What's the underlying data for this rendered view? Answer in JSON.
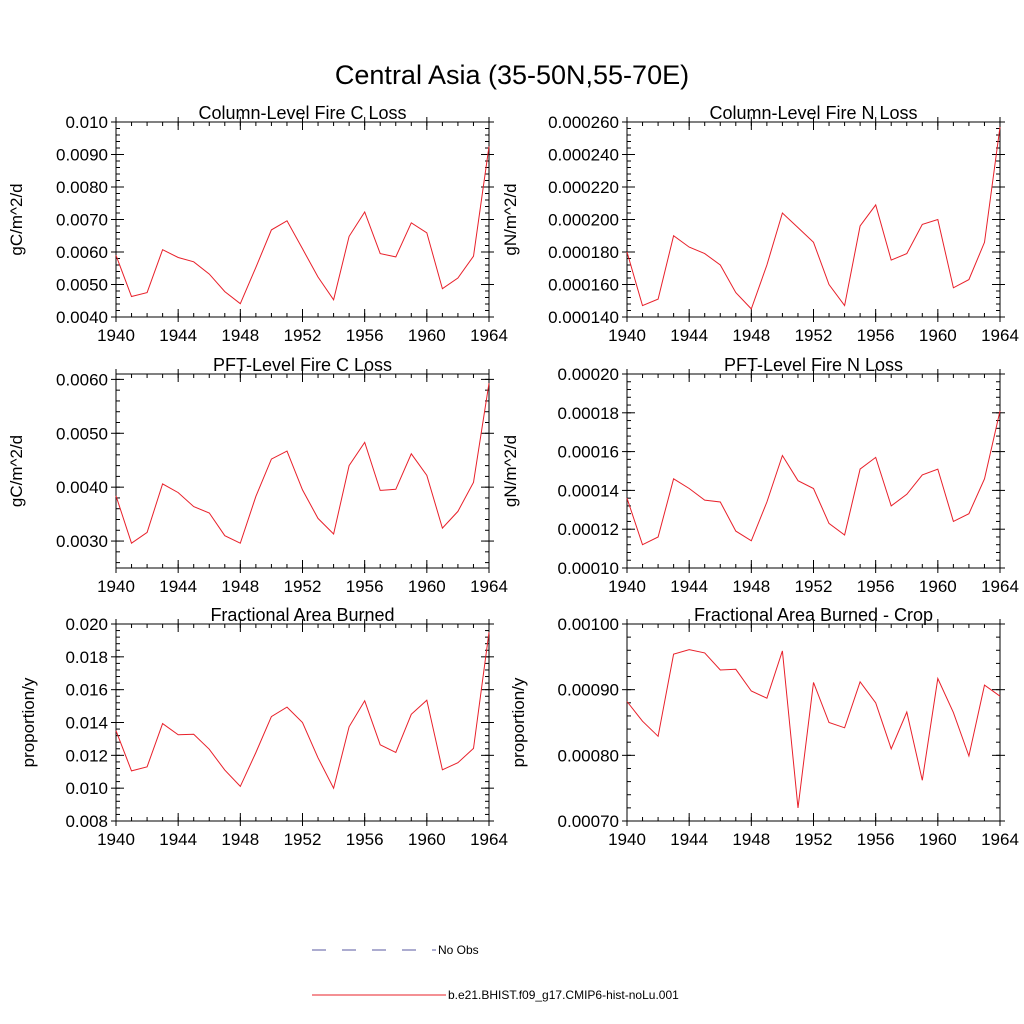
{
  "title": "Central Asia (35-50N,55-70E)",
  "legend": {
    "placement": "bottom-center",
    "entries": [
      {
        "label": "No Obs",
        "color": "#5a5aa0",
        "style": "dashed"
      },
      {
        "label": "b.e21.BHIST.f09_g17.CMIP6-hist-noLu.001",
        "color": "#e8202a",
        "style": "solid"
      }
    ]
  },
  "chart_data": [
    {
      "type": "line",
      "title": "Column-Level Fire C Loss",
      "ylabel": "gC/m^2/d",
      "xlim": [
        1940,
        1964
      ],
      "ylim": [
        0.004,
        0.01
      ],
      "xticks": [
        1940,
        1944,
        1948,
        1952,
        1956,
        1960,
        1964
      ],
      "yticks": [
        0.004,
        0.005,
        0.006,
        0.007,
        0.008,
        0.009,
        0.01
      ],
      "ytick_labels": [
        "0.0040",
        "0.0050",
        "0.0060",
        "0.0070",
        "0.0080",
        "0.0090",
        "0.010"
      ],
      "x": [
        1940,
        1941,
        1942,
        1943,
        1944,
        1945,
        1946,
        1947,
        1948,
        1949,
        1950,
        1951,
        1952,
        1953,
        1954,
        1955,
        1956,
        1957,
        1958,
        1959,
        1960,
        1961,
        1962,
        1963,
        1964
      ],
      "series": [
        {
          "name": "b.e21.BHIST.f09_g17.CMIP6-hist-noLu.001",
          "color": "#e8202a",
          "values": [
            0.0059,
            0.00463,
            0.00475,
            0.00607,
            0.00583,
            0.0057,
            0.00532,
            0.00478,
            0.00441,
            0.00553,
            0.00668,
            0.00696,
            0.0061,
            0.00523,
            0.00453,
            0.00648,
            0.00723,
            0.00595,
            0.00585,
            0.0069,
            0.00659,
            0.00487,
            0.0052,
            0.00587,
            0.00925
          ]
        }
      ]
    },
    {
      "type": "line",
      "title": "Column-Level Fire N Loss",
      "ylabel": "gN/m^2/d",
      "xlim": [
        1940,
        1964
      ],
      "ylim": [
        0.00014,
        0.00026
      ],
      "xticks": [
        1940,
        1944,
        1948,
        1952,
        1956,
        1960,
        1964
      ],
      "yticks": [
        0.00014,
        0.00016,
        0.00018,
        0.0002,
        0.00022,
        0.00024,
        0.00026
      ],
      "ytick_labels": [
        "0.000140",
        "0.000160",
        "0.000180",
        "0.000200",
        "0.000220",
        "0.000240",
        "0.000260"
      ],
      "x": [
        1940,
        1941,
        1942,
        1943,
        1944,
        1945,
        1946,
        1947,
        1948,
        1949,
        1950,
        1951,
        1952,
        1953,
        1954,
        1955,
        1956,
        1957,
        1958,
        1959,
        1960,
        1961,
        1962,
        1963,
        1964
      ],
      "series": [
        {
          "name": "b.e21.BHIST.f09_g17.CMIP6-hist-noLu.001",
          "color": "#e8202a",
          "values": [
            0.00018,
            0.000147,
            0.000151,
            0.00019,
            0.000183,
            0.000179,
            0.000172,
            0.000155,
            0.000145,
            0.000172,
            0.000204,
            0.000195,
            0.000186,
            0.00016,
            0.000147,
            0.000196,
            0.000209,
            0.000175,
            0.000179,
            0.000197,
            0.0002,
            0.000158,
            0.000163,
            0.000186,
            0.000257
          ]
        }
      ]
    },
    {
      "type": "line",
      "title": "PFT-Level Fire C Loss",
      "ylabel": "gC/m^2/d",
      "xlim": [
        1940,
        1964
      ],
      "ylim": [
        0.0025,
        0.0061
      ],
      "xticks": [
        1940,
        1944,
        1948,
        1952,
        1956,
        1960,
        1964
      ],
      "yticks": [
        0.003,
        0.004,
        0.005,
        0.006
      ],
      "ytick_labels": [
        "0.0030",
        "0.0040",
        "0.0050",
        "0.0060"
      ],
      "x": [
        1940,
        1941,
        1942,
        1943,
        1944,
        1945,
        1946,
        1947,
        1948,
        1949,
        1950,
        1951,
        1952,
        1953,
        1954,
        1955,
        1956,
        1957,
        1958,
        1959,
        1960,
        1961,
        1962,
        1963,
        1964
      ],
      "series": [
        {
          "name": "b.e21.BHIST.f09_g17.CMIP6-hist-noLu.001",
          "color": "#e8202a",
          "values": [
            0.00384,
            0.00296,
            0.00316,
            0.00406,
            0.0039,
            0.00364,
            0.00352,
            0.0031,
            0.00296,
            0.00383,
            0.00452,
            0.00467,
            0.00395,
            0.00342,
            0.00313,
            0.0044,
            0.00483,
            0.00394,
            0.00396,
            0.00462,
            0.00422,
            0.00324,
            0.00355,
            0.00409,
            0.00593
          ]
        }
      ]
    },
    {
      "type": "line",
      "title": "PFT-Level Fire N Loss",
      "ylabel": "gN/m^2/d",
      "xlim": [
        1940,
        1964
      ],
      "ylim": [
        0.0001,
        0.0002
      ],
      "xticks": [
        1940,
        1944,
        1948,
        1952,
        1956,
        1960,
        1964
      ],
      "yticks": [
        0.0001,
        0.00012,
        0.00014,
        0.00016,
        0.00018,
        0.0002
      ],
      "ytick_labels": [
        "0.00010",
        "0.00012",
        "0.00014",
        "0.00016",
        "0.00018",
        "0.00020"
      ],
      "x": [
        1940,
        1941,
        1942,
        1943,
        1944,
        1945,
        1946,
        1947,
        1948,
        1949,
        1950,
        1951,
        1952,
        1953,
        1954,
        1955,
        1956,
        1957,
        1958,
        1959,
        1960,
        1961,
        1962,
        1963,
        1964
      ],
      "series": [
        {
          "name": "b.e21.BHIST.f09_g17.CMIP6-hist-noLu.001",
          "color": "#e8202a",
          "values": [
            0.000136,
            0.000112,
            0.000116,
            0.000146,
            0.000141,
            0.000135,
            0.000134,
            0.000119,
            0.000114,
            0.000134,
            0.000158,
            0.000145,
            0.000141,
            0.000123,
            0.000117,
            0.000151,
            0.000157,
            0.000132,
            0.000138,
            0.000148,
            0.000151,
            0.000124,
            0.000128,
            0.000146,
            0.000181
          ]
        }
      ]
    },
    {
      "type": "line",
      "title": "Fractional Area Burned",
      "ylabel": "proportion/y",
      "xlim": [
        1940,
        1964
      ],
      "ylim": [
        0.008,
        0.02
      ],
      "xticks": [
        1940,
        1944,
        1948,
        1952,
        1956,
        1960,
        1964
      ],
      "yticks": [
        0.008,
        0.01,
        0.012,
        0.014,
        0.016,
        0.018,
        0.02
      ],
      "ytick_labels": [
        "0.008",
        "0.010",
        "0.012",
        "0.014",
        "0.016",
        "0.018",
        "0.020"
      ],
      "x": [
        1940,
        1941,
        1942,
        1943,
        1944,
        1945,
        1946,
        1947,
        1948,
        1949,
        1950,
        1951,
        1952,
        1953,
        1954,
        1955,
        1956,
        1957,
        1958,
        1959,
        1960,
        1961,
        1962,
        1963,
        1964
      ],
      "series": [
        {
          "name": "b.e21.BHIST.f09_g17.CMIP6-hist-noLu.001",
          "color": "#e8202a",
          "values": [
            0.0135,
            0.01105,
            0.0113,
            0.01393,
            0.01325,
            0.01328,
            0.01237,
            0.0111,
            0.01011,
            0.01217,
            0.01436,
            0.01494,
            0.014,
            0.01185,
            0.01,
            0.01374,
            0.01532,
            0.01264,
            0.01218,
            0.0145,
            0.01536,
            0.01112,
            0.01155,
            0.01242,
            0.0195
          ]
        }
      ]
    },
    {
      "type": "line",
      "title": "Fractional Area Burned - Crop",
      "ylabel": "proportion/y",
      "xlim": [
        1940,
        1964
      ],
      "ylim": [
        0.0007,
        0.001
      ],
      "xticks": [
        1940,
        1944,
        1948,
        1952,
        1956,
        1960,
        1964
      ],
      "yticks": [
        0.0007,
        0.0008,
        0.0009,
        0.001
      ],
      "ytick_labels": [
        "0.00070",
        "0.00080",
        "0.00090",
        "0.00100"
      ],
      "x": [
        1940,
        1941,
        1942,
        1943,
        1944,
        1945,
        1946,
        1947,
        1948,
        1949,
        1950,
        1951,
        1952,
        1953,
        1954,
        1955,
        1956,
        1957,
        1958,
        1959,
        1960,
        1961,
        1962,
        1963,
        1964
      ],
      "series": [
        {
          "name": "b.e21.BHIST.f09_g17.CMIP6-hist-noLu.001",
          "color": "#e8202a",
          "values": [
            0.000882,
            0.000852,
            0.000829,
            0.000954,
            0.000961,
            0.000956,
            0.00093,
            0.000931,
            0.000898,
            0.000887,
            0.000959,
            0.00072,
            0.000911,
            0.00085,
            0.000842,
            0.000912,
            0.00088,
            0.00081,
            0.000866,
            0.000762,
            0.000917,
            0.000865,
            0.000799,
            0.000907,
            0.00089
          ]
        }
      ]
    }
  ]
}
